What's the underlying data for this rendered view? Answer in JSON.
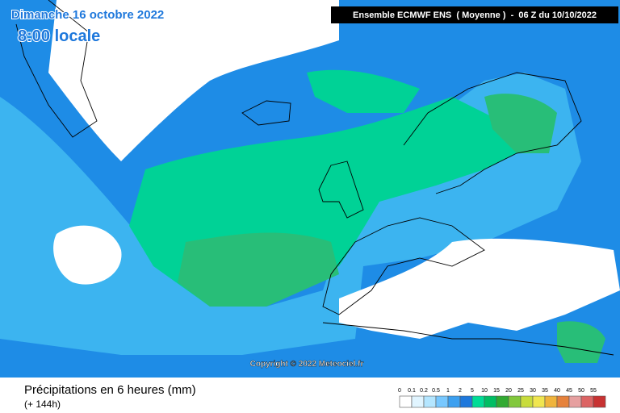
{
  "header": {
    "date": "Dimanche 16 octobre 2022",
    "time": "8:00 locale",
    "model": "Ensemble ECMWF ENS  ( Moyenne )  -  06 Z du 10/10/2022"
  },
  "map": {
    "copyright": "Copyright © 2022 Meteociel.fr"
  },
  "footer": {
    "title": "Précipitations en 6 heures (mm)",
    "lead": "(+ 144h)"
  },
  "legend": {
    "items": [
      {
        "label": "0",
        "color": "#ffffff"
      },
      {
        "label": "0.1",
        "color": "#e1f5ff"
      },
      {
        "label": "0.2",
        "color": "#b4e6ff"
      },
      {
        "label": "0.5",
        "color": "#78c8ff"
      },
      {
        "label": "1",
        "color": "#3ca0f0"
      },
      {
        "label": "2",
        "color": "#1e78dc"
      },
      {
        "label": "5",
        "color": "#00dc96"
      },
      {
        "label": "10",
        "color": "#00be64"
      },
      {
        "label": "15",
        "color": "#32aa32"
      },
      {
        "label": "20",
        "color": "#82c83c"
      },
      {
        "label": "25",
        "color": "#c8dc3c"
      },
      {
        "label": "30",
        "color": "#f0e650"
      },
      {
        "label": "35",
        "color": "#f0b43c"
      },
      {
        "label": "40",
        "color": "#e6823c"
      },
      {
        "label": "45",
        "color": "#e6a0a0"
      },
      {
        "label": "50",
        "color": "#dc6464"
      },
      {
        "label": "55",
        "color": "#c83232"
      }
    ]
  }
}
